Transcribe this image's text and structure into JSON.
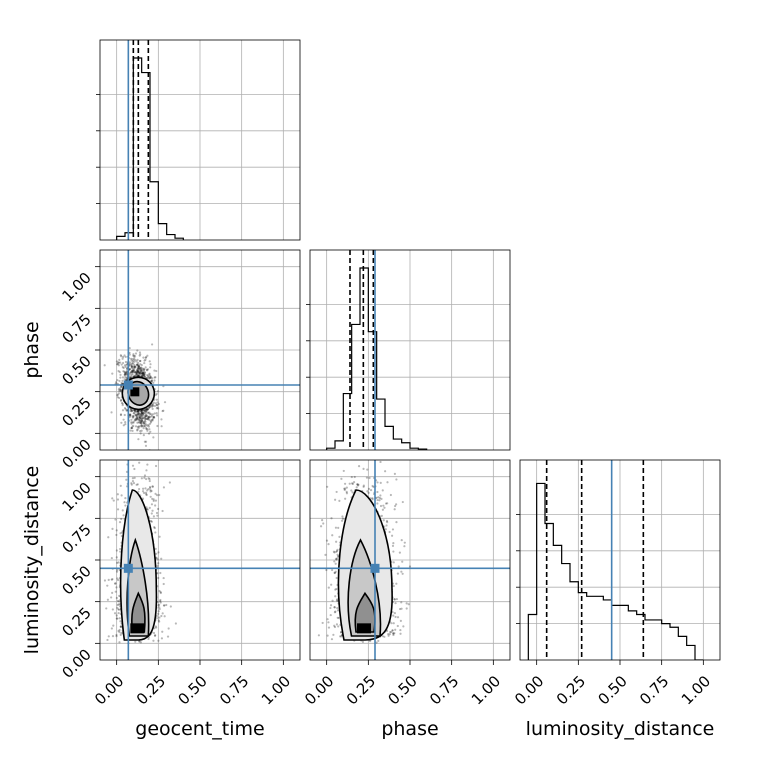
{
  "chart_data": {
    "type": "corner",
    "parameters": [
      "geocent_time",
      "phase",
      "luminosity_distance"
    ],
    "axis_range": [
      -0.1,
      1.1
    ],
    "tick_labels": [
      "0.00",
      "0.25",
      "0.50",
      "0.75",
      "1.00"
    ],
    "tick_values": [
      0.0,
      0.25,
      0.5,
      0.75,
      1.0
    ],
    "grid": true,
    "truths": {
      "geocent_time": 0.07,
      "phase": 0.29,
      "luminosity_distance": 0.45
    },
    "truth_color": "#4682b4",
    "quantiles": {
      "geocent_time": [
        0.1,
        0.13,
        0.19
      ],
      "phase": [
        0.14,
        0.22,
        0.28
      ],
      "luminosity_distance": [
        0.06,
        0.27,
        0.64
      ]
    },
    "histograms": {
      "geocent_time": {
        "edges": [
          0.0,
          0.05,
          0.1,
          0.15,
          0.2,
          0.25,
          0.3,
          0.35,
          0.4
        ],
        "counts": [
          0.02,
          0.04,
          1.0,
          0.92,
          0.32,
          0.09,
          0.03,
          0.01
        ]
      },
      "phase": {
        "edges": [
          0.0,
          0.05,
          0.1,
          0.15,
          0.2,
          0.25,
          0.3,
          0.35,
          0.4,
          0.45,
          0.5,
          0.55,
          0.6
        ],
        "counts": [
          0.01,
          0.05,
          0.31,
          0.69,
          1.0,
          0.65,
          0.28,
          0.13,
          0.06,
          0.04,
          0.01,
          0.005
        ]
      },
      "luminosity_distance": {
        "edges": [
          -0.05,
          0.0,
          0.05,
          0.1,
          0.15,
          0.2,
          0.25,
          0.3,
          0.35,
          0.4,
          0.45,
          0.5,
          0.55,
          0.6,
          0.65,
          0.7,
          0.75,
          0.8,
          0.85,
          0.9,
          0.95,
          1.0
        ],
        "counts": [
          0.25,
          0.97,
          0.75,
          0.63,
          0.53,
          0.43,
          0.37,
          0.35,
          0.35,
          0.33,
          0.3,
          0.3,
          0.27,
          0.25,
          0.22,
          0.22,
          0.2,
          0.18,
          0.13,
          0.08,
          0.0
        ]
      }
    },
    "contours_2d": {
      "phase_vs_geocent_time": {
        "center": [
          0.13,
          0.24
        ],
        "spread": [
          0.05,
          0.1
        ]
      },
      "luminosity_distance_vs_geocent_time": {
        "center": [
          0.13,
          0.15
        ],
        "spread": [
          0.06,
          0.4
        ]
      },
      "luminosity_distance_vs_phase": {
        "center": [
          0.23,
          0.15
        ],
        "spread": [
          0.09,
          0.4
        ]
      }
    }
  }
}
